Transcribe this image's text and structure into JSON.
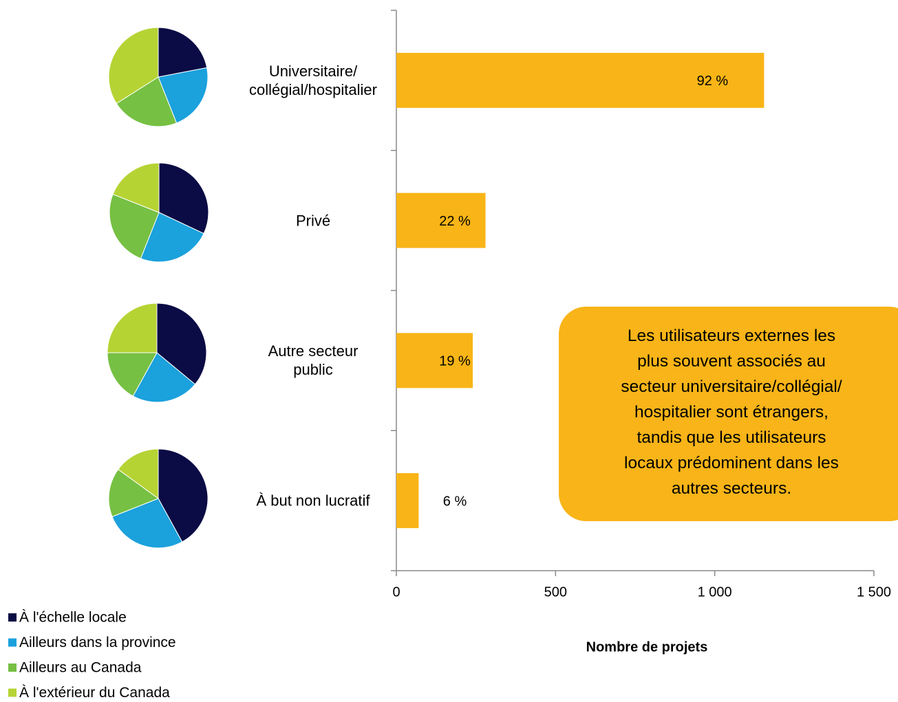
{
  "chart_data": [
    {
      "type": "bar",
      "categories": [
        "Universitaire/\ncollégial/hospitalier",
        "Privé",
        "Autre secteur\npublic",
        "À but non lucratif"
      ],
      "values": [
        1155,
        280,
        240,
        70
      ],
      "data_labels": [
        "92 %",
        "22 %",
        "19 %",
        "6 %"
      ],
      "color": "#f9b517",
      "xlabel": "Nombre de projets",
      "xlim": [
        0,
        1500
      ],
      "xticks": [
        0,
        500,
        {
          "value": 1000,
          "label": "1 000"
        },
        {
          "value": 1500,
          "label": "1 500"
        }
      ],
      "annotation": "Les utilisateurs externes les\nplus souvent associés au\nsecteur universitaire/collégial/\nhospitalier sont étrangers,\ntandis que les utilisateurs\nlocaux prédominent dans les\nautres secteurs."
    },
    {
      "type": "pie",
      "categories": [
        "À l'échelle locale",
        "Ailleurs dans la province",
        "Ailleurs au Canada",
        "À l'extérieur du Canada"
      ],
      "colors": [
        "#0b0b45",
        "#1ba1dc",
        "#76c043",
        "#b6d334"
      ],
      "series": [
        {
          "values": [
            22,
            22,
            22,
            34
          ]
        },
        {
          "values": [
            32,
            24,
            25,
            19
          ]
        },
        {
          "values": [
            36,
            22,
            17,
            25
          ]
        },
        {
          "values": [
            42,
            27,
            16,
            15
          ]
        }
      ]
    }
  ]
}
